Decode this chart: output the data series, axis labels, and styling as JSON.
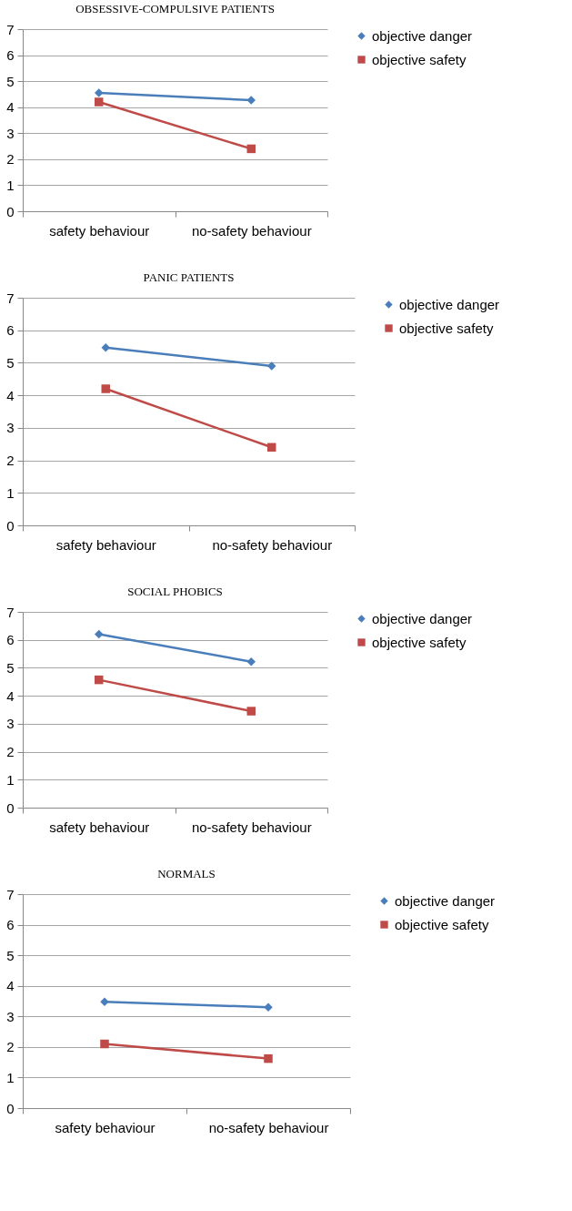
{
  "chart_data": [
    {
      "type": "line",
      "title": "OBSESSIVE-COMPULSIVE PATIENTS",
      "categories": [
        "safety behaviour",
        "no-safety behaviour"
      ],
      "series": [
        {
          "name": "objective danger",
          "color": "#4a7ebb",
          "marker": "diamond",
          "values": [
            4.55,
            4.27
          ]
        },
        {
          "name": "objective safety",
          "color": "#be4b48",
          "marker": "square",
          "values": [
            4.2,
            2.4
          ]
        }
      ],
      "ylim": [
        0,
        7
      ],
      "yticks": [
        0,
        1,
        2,
        3,
        4,
        5,
        6,
        7
      ],
      "grid": "y",
      "legend": "right"
    },
    {
      "type": "line",
      "title": "PANIC PATIENTS",
      "categories": [
        "safety behaviour",
        "no-safety behaviour"
      ],
      "series": [
        {
          "name": "objective danger",
          "color": "#4a7ebb",
          "marker": "diamond",
          "values": [
            5.47,
            4.9
          ]
        },
        {
          "name": "objective safety",
          "color": "#be4b48",
          "marker": "square",
          "values": [
            4.2,
            2.4
          ]
        }
      ],
      "ylim": [
        0,
        7
      ],
      "yticks": [
        0,
        1,
        2,
        3,
        4,
        5,
        6,
        7
      ],
      "grid": "y",
      "legend": "right"
    },
    {
      "type": "line",
      "title": "SOCIAL PHOBICS",
      "categories": [
        "safety behaviour",
        "no-safety behaviour"
      ],
      "series": [
        {
          "name": "objective danger",
          "color": "#4a7ebb",
          "marker": "diamond",
          "values": [
            6.2,
            5.22
          ]
        },
        {
          "name": "objective safety",
          "color": "#be4b48",
          "marker": "square",
          "values": [
            4.57,
            3.45
          ]
        }
      ],
      "ylim": [
        0,
        7
      ],
      "yticks": [
        0,
        1,
        2,
        3,
        4,
        5,
        6,
        7
      ],
      "grid": "y",
      "legend": "right"
    },
    {
      "type": "line",
      "title": "NORMALS",
      "categories": [
        "safety behaviour",
        "no-safety behaviour"
      ],
      "series": [
        {
          "name": "objective danger",
          "color": "#4a7ebb",
          "marker": "diamond",
          "values": [
            3.48,
            3.3
          ]
        },
        {
          "name": "objective safety",
          "color": "#be4b48",
          "marker": "square",
          "values": [
            2.1,
            1.62
          ]
        }
      ],
      "ylim": [
        0,
        7
      ],
      "yticks": [
        0,
        1,
        2,
        3,
        4,
        5,
        6,
        7
      ],
      "grid": "y",
      "legend": "right"
    }
  ]
}
